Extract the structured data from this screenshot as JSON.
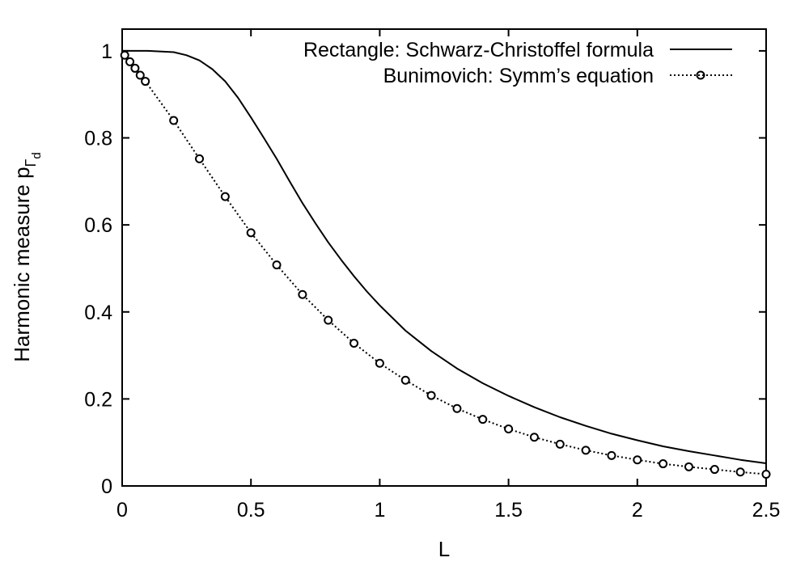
{
  "chart_data": {
    "type": "line",
    "xlabel": "L",
    "ylabel": {
      "main": "Harmonic measure p",
      "sub1": "Γ",
      "sub2": "d"
    },
    "xlim": [
      0,
      2.5
    ],
    "ylim": [
      0,
      1.05
    ],
    "xticks": [
      0,
      0.5,
      1,
      1.5,
      2,
      2.5
    ],
    "xtick_labels": [
      "0",
      "0.5",
      "1",
      "1.5",
      "2",
      "2.5"
    ],
    "yticks": [
      0,
      0.2,
      0.4,
      0.6,
      0.8,
      1
    ],
    "ytick_labels": [
      "0",
      "0.2",
      "0.4",
      "0.6",
      "0.8",
      "1"
    ],
    "grid": false,
    "legend_position": "top-right",
    "series": [
      {
        "name": "Rectangle: Schwarz-Christoffel formula",
        "style": "solid",
        "color": "#000000",
        "x": [
          0,
          0.1,
          0.2,
          0.25,
          0.3,
          0.35,
          0.4,
          0.45,
          0.5,
          0.55,
          0.6,
          0.65,
          0.7,
          0.75,
          0.8,
          0.85,
          0.9,
          0.95,
          1.0,
          1.1,
          1.2,
          1.3,
          1.4,
          1.5,
          1.6,
          1.7,
          1.8,
          1.9,
          2.0,
          2.1,
          2.2,
          2.3,
          2.4,
          2.5
        ],
        "y": [
          1.0,
          1.0,
          0.997,
          0.99,
          0.978,
          0.958,
          0.93,
          0.892,
          0.847,
          0.8,
          0.752,
          0.7,
          0.65,
          0.604,
          0.56,
          0.52,
          0.482,
          0.447,
          0.415,
          0.357,
          0.31,
          0.27,
          0.236,
          0.207,
          0.181,
          0.158,
          0.138,
          0.12,
          0.105,
          0.091,
          0.08,
          0.07,
          0.06,
          0.052
        ]
      },
      {
        "name": "Bunimovich: Symm’s equation",
        "style": "dotted-markers",
        "color": "#000000",
        "x": [
          0.01,
          0.03,
          0.05,
          0.07,
          0.09,
          0.2,
          0.3,
          0.4,
          0.5,
          0.6,
          0.7,
          0.8,
          0.9,
          1.0,
          1.1,
          1.2,
          1.3,
          1.4,
          1.5,
          1.6,
          1.7,
          1.8,
          1.9,
          2.0,
          2.1,
          2.2,
          2.3,
          2.4,
          2.5
        ],
        "y": [
          0.99,
          0.975,
          0.96,
          0.944,
          0.93,
          0.84,
          0.752,
          0.665,
          0.582,
          0.508,
          0.44,
          0.381,
          0.328,
          0.282,
          0.243,
          0.208,
          0.178,
          0.153,
          0.131,
          0.112,
          0.096,
          0.082,
          0.07,
          0.06,
          0.051,
          0.044,
          0.038,
          0.032,
          0.027
        ]
      }
    ]
  }
}
